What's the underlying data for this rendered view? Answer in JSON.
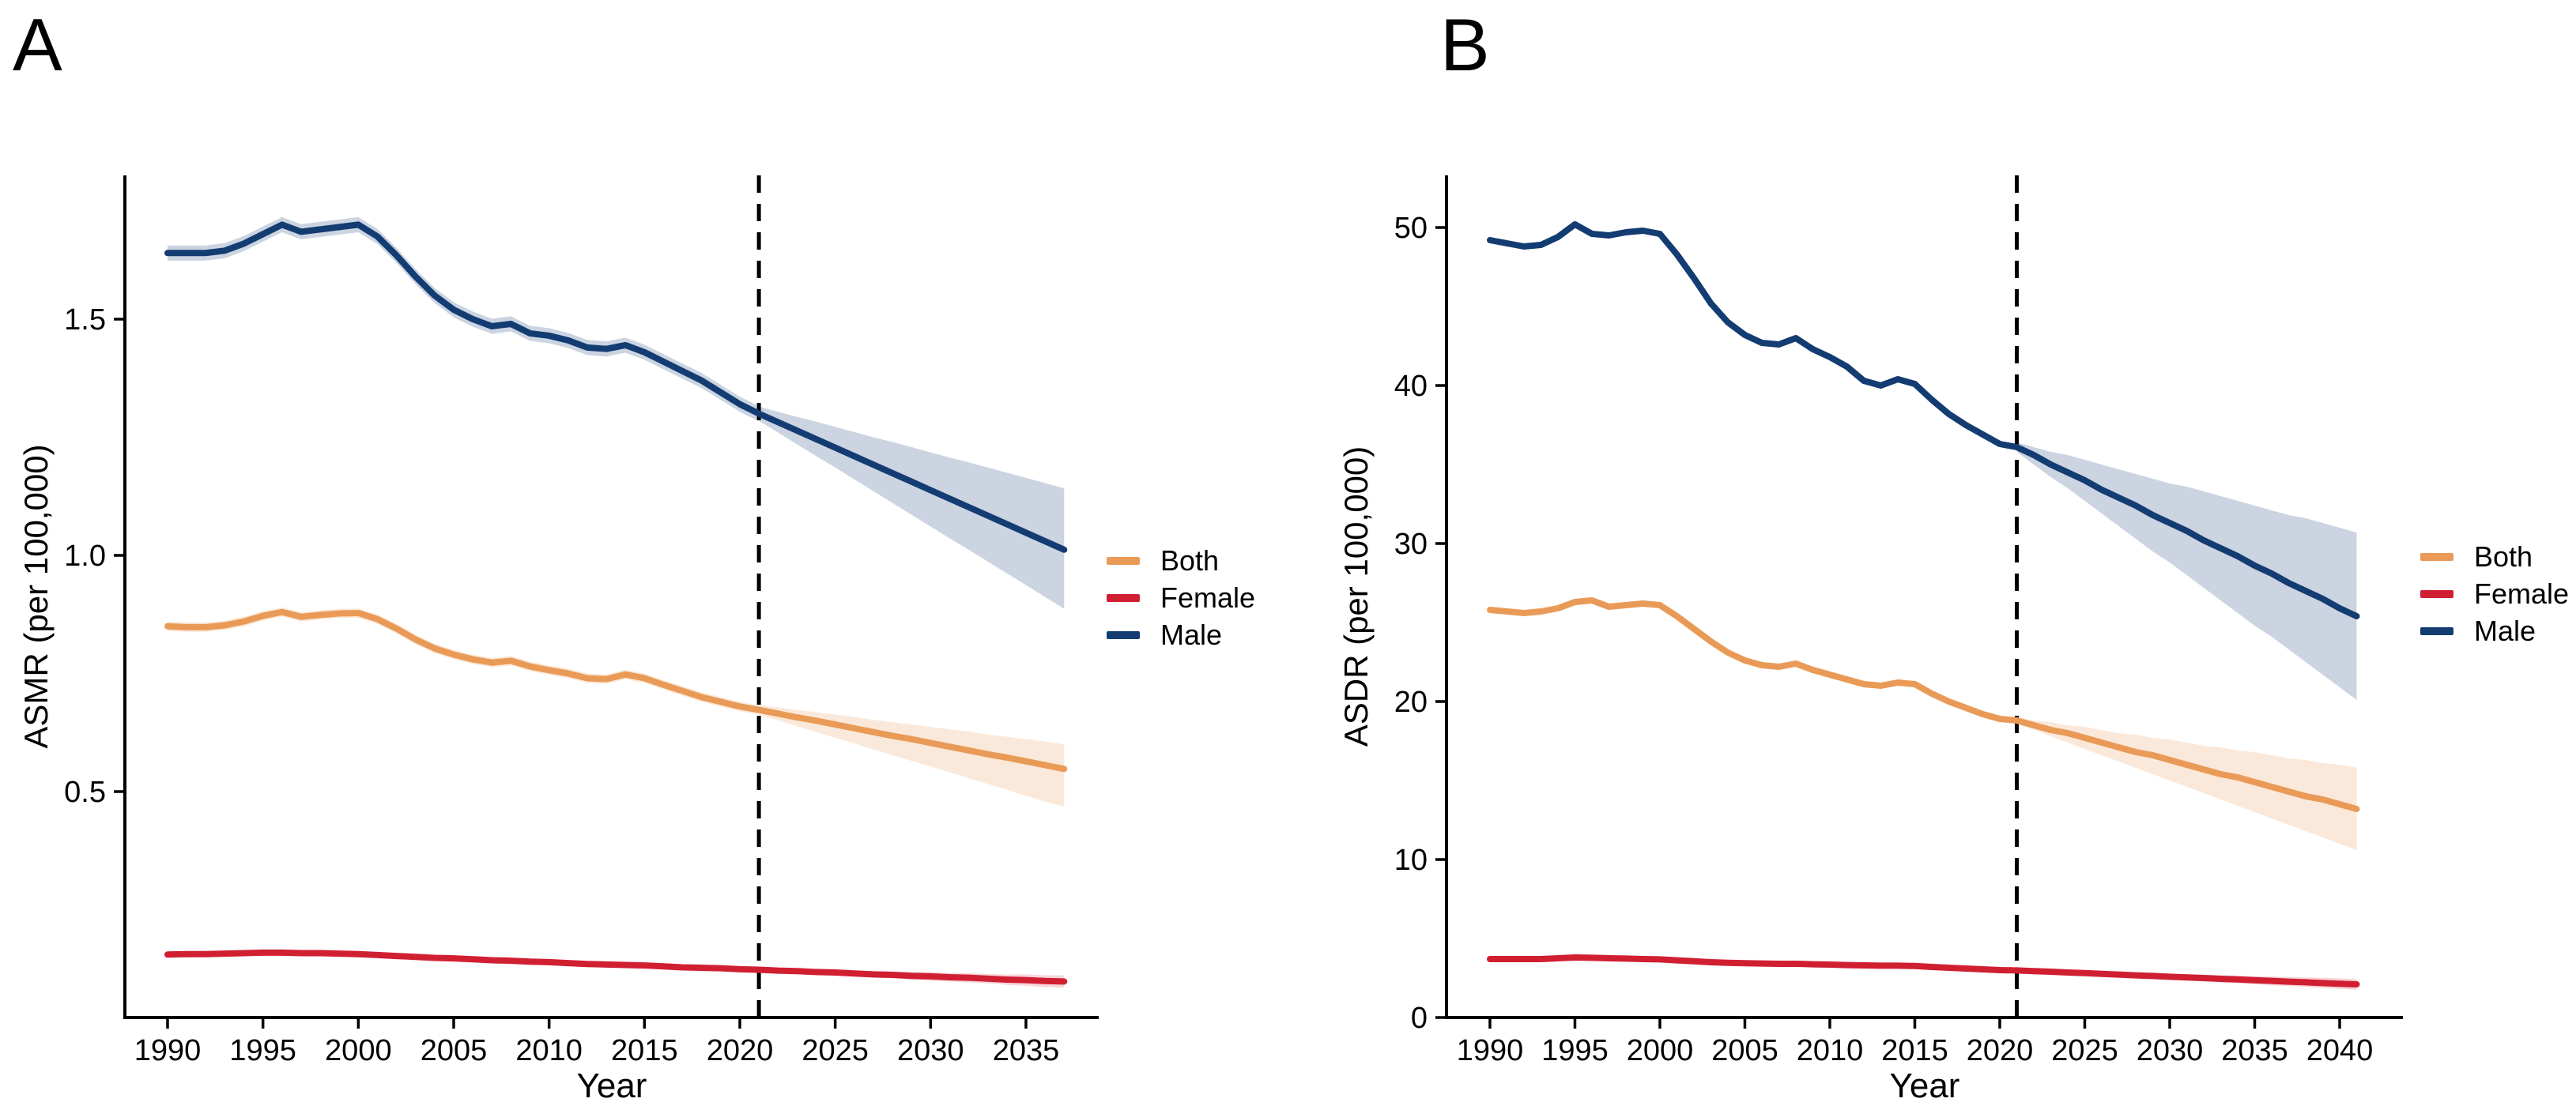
{
  "figure": {
    "background": "#ffffff",
    "axis_color": "#000000",
    "dashed_line_color": "#000000"
  },
  "chart_data": [
    {
      "type": "line",
      "title": "A",
      "xlabel": "Year",
      "ylabel": "ASMR (per 100,000)",
      "xlim": [
        1988,
        2039
      ],
      "ylim": [
        0,
        1.8
      ],
      "grid": false,
      "legend_position": "right",
      "xticks": [
        1990,
        1995,
        2000,
        2005,
        2010,
        2015,
        2020,
        2025,
        2030,
        2035
      ],
      "yticks": [
        0.5,
        1.0,
        1.5
      ],
      "ytick_labels": [
        "0.5",
        "1.0",
        "1.5"
      ],
      "hist_start_year": 1990,
      "forecast_start_year": 2021,
      "vline_year": 2021,
      "series": [
        {
          "name": "Both",
          "color": "#EA9A57",
          "band_color": "rgba(234,154,87,0.22)",
          "hist_band": 0.01,
          "hist": [
            0.85,
            0.848,
            0.848,
            0.852,
            0.86,
            0.872,
            0.88,
            0.87,
            0.874,
            0.877,
            0.878,
            0.865,
            0.845,
            0.822,
            0.803,
            0.79,
            0.78,
            0.773,
            0.777,
            0.765,
            0.757,
            0.75,
            0.74,
            0.738,
            0.748,
            0.74,
            0.726,
            0.713,
            0.7,
            0.69,
            0.68,
            0.673
          ],
          "forecast": [
            0.673,
            0.665,
            0.657,
            0.65,
            0.642,
            0.634,
            0.626,
            0.618,
            0.611,
            0.603,
            0.595,
            0.587,
            0.579,
            0.572,
            0.564,
            0.556,
            0.548
          ],
          "upper": [
            0.683,
            0.678,
            0.673,
            0.668,
            0.663,
            0.658,
            0.652,
            0.647,
            0.642,
            0.637,
            0.632,
            0.627,
            0.621,
            0.616,
            0.611,
            0.606,
            0.6
          ],
          "lower": [
            0.663,
            0.651,
            0.638,
            0.626,
            0.614,
            0.602,
            0.589,
            0.577,
            0.565,
            0.553,
            0.541,
            0.528,
            0.516,
            0.504,
            0.491,
            0.479,
            0.468
          ]
        },
        {
          "name": "Female",
          "color": "#D11F32",
          "band_color": "rgba(209,31,50,0.18)",
          "hist_band": 0.004,
          "hist": [
            0.155,
            0.156,
            0.156,
            0.157,
            0.158,
            0.159,
            0.159,
            0.158,
            0.158,
            0.157,
            0.156,
            0.154,
            0.152,
            0.15,
            0.148,
            0.147,
            0.145,
            0.143,
            0.142,
            0.14,
            0.139,
            0.137,
            0.135,
            0.134,
            0.133,
            0.132,
            0.13,
            0.128,
            0.127,
            0.126,
            0.124,
            0.123
          ],
          "forecast": [
            0.123,
            0.121,
            0.12,
            0.118,
            0.117,
            0.115,
            0.113,
            0.112,
            0.11,
            0.109,
            0.107,
            0.106,
            0.104,
            0.102,
            0.101,
            0.099,
            0.098
          ],
          "upper": [
            0.126,
            0.125,
            0.124,
            0.123,
            0.122,
            0.121,
            0.12,
            0.119,
            0.118,
            0.118,
            0.116,
            0.116,
            0.114,
            0.113,
            0.113,
            0.111,
            0.111
          ],
          "lower": [
            0.12,
            0.117,
            0.116,
            0.113,
            0.112,
            0.109,
            0.106,
            0.105,
            0.102,
            0.1,
            0.098,
            0.096,
            0.094,
            0.091,
            0.089,
            0.086,
            0.085
          ]
        },
        {
          "name": "Male",
          "color": "#133C72",
          "band_color": "rgba(19,60,114,0.22)",
          "hist_band": 0.016,
          "hist": [
            1.64,
            1.64,
            1.64,
            1.645,
            1.66,
            1.68,
            1.7,
            1.685,
            1.69,
            1.695,
            1.7,
            1.675,
            1.635,
            1.59,
            1.55,
            1.52,
            1.5,
            1.485,
            1.49,
            1.47,
            1.465,
            1.455,
            1.44,
            1.437,
            1.445,
            1.43,
            1.41,
            1.39,
            1.37,
            1.345,
            1.32,
            1.3
          ],
          "forecast": [
            1.3,
            1.282,
            1.264,
            1.246,
            1.228,
            1.21,
            1.192,
            1.174,
            1.156,
            1.138,
            1.12,
            1.102,
            1.084,
            1.066,
            1.048,
            1.03,
            1.012
          ],
          "upper": [
            1.315,
            1.304,
            1.293,
            1.283,
            1.272,
            1.261,
            1.25,
            1.24,
            1.229,
            1.218,
            1.207,
            1.197,
            1.186,
            1.175,
            1.164,
            1.153,
            1.142
          ],
          "lower": [
            1.285,
            1.26,
            1.235,
            1.21,
            1.186,
            1.161,
            1.136,
            1.111,
            1.086,
            1.061,
            1.036,
            1.012,
            0.987,
            0.962,
            0.937,
            0.912,
            0.887
          ]
        }
      ],
      "legend": [
        "Both",
        "Female",
        "Male"
      ]
    },
    {
      "type": "line",
      "title": "B",
      "xlabel": "Year",
      "ylabel": "ASDR (per 100,000)",
      "xlim": [
        1988,
        2043
      ],
      "ylim": [
        0,
        53
      ],
      "grid": false,
      "legend_position": "right",
      "xticks": [
        1990,
        1995,
        2000,
        2005,
        2010,
        2015,
        2020,
        2025,
        2030,
        2035,
        2040
      ],
      "yticks": [
        0,
        10,
        20,
        30,
        40,
        50
      ],
      "ytick_labels": [
        "0",
        "10",
        "20",
        "30",
        "40",
        "50"
      ],
      "hist_start_year": 1990,
      "forecast_start_year": 2021,
      "vline_year": 2021,
      "series": [
        {
          "name": "Both",
          "color": "#EA9A57",
          "band_color": "rgba(234,154,87,0.22)",
          "hist_band": 0,
          "hist": [
            25.8,
            25.7,
            25.6,
            25.7,
            25.9,
            26.3,
            26.4,
            26.0,
            26.1,
            26.2,
            26.1,
            25.4,
            24.6,
            23.8,
            23.1,
            22.6,
            22.3,
            22.2,
            22.4,
            22.0,
            21.7,
            21.4,
            21.1,
            21.0,
            21.2,
            21.1,
            20.5,
            20.0,
            19.6,
            19.2,
            18.9,
            18.8
          ],
          "forecast": [
            18.8,
            18.5,
            18.2,
            18.0,
            17.7,
            17.4,
            17.1,
            16.8,
            16.6,
            16.3,
            16.0,
            15.7,
            15.4,
            15.2,
            14.9,
            14.6,
            14.3,
            14.0,
            13.8,
            13.5,
            13.2
          ],
          "upper": [
            19.0,
            18.8,
            18.7,
            18.5,
            18.4,
            18.2,
            18.0,
            17.9,
            17.7,
            17.6,
            17.4,
            17.2,
            17.1,
            16.9,
            16.8,
            16.6,
            16.4,
            16.3,
            16.1,
            16.0,
            15.8
          ],
          "lower": [
            18.6,
            18.2,
            17.8,
            17.4,
            17.0,
            16.6,
            16.2,
            15.8,
            15.4,
            15.0,
            14.6,
            14.2,
            13.8,
            13.4,
            13.0,
            12.6,
            12.2,
            11.8,
            11.4,
            11.0,
            10.6
          ]
        },
        {
          "name": "Female",
          "color": "#D11F32",
          "band_color": "rgba(209,31,50,0.18)",
          "hist_band": 0,
          "hist": [
            3.7,
            3.7,
            3.7,
            3.7,
            3.75,
            3.8,
            3.78,
            3.75,
            3.73,
            3.7,
            3.68,
            3.62,
            3.56,
            3.5,
            3.46,
            3.44,
            3.42,
            3.4,
            3.4,
            3.37,
            3.35,
            3.32,
            3.3,
            3.28,
            3.28,
            3.26,
            3.2,
            3.15,
            3.1,
            3.05,
            3.0,
            2.98
          ],
          "forecast": [
            2.98,
            2.94,
            2.9,
            2.85,
            2.81,
            2.76,
            2.72,
            2.67,
            2.63,
            2.58,
            2.54,
            2.5,
            2.45,
            2.41,
            2.36,
            2.32,
            2.27,
            2.23,
            2.18,
            2.14,
            2.1
          ],
          "upper": [
            3.03,
            3.0,
            2.97,
            2.94,
            2.91,
            2.88,
            2.86,
            2.83,
            2.8,
            2.77,
            2.74,
            2.71,
            2.68,
            2.65,
            2.62,
            2.6,
            2.57,
            2.54,
            2.51,
            2.48,
            2.45
          ],
          "lower": [
            2.93,
            2.87,
            2.81,
            2.75,
            2.69,
            2.64,
            2.58,
            2.52,
            2.46,
            2.4,
            2.34,
            2.28,
            2.22,
            2.16,
            2.1,
            2.05,
            1.99,
            1.93,
            1.87,
            1.81,
            1.75
          ]
        },
        {
          "name": "Male",
          "color": "#133C72",
          "band_color": "rgba(19,60,114,0.22)",
          "hist_band": 0,
          "hist": [
            49.2,
            49.0,
            48.8,
            48.9,
            49.4,
            50.2,
            49.6,
            49.5,
            49.7,
            49.8,
            49.6,
            48.3,
            46.8,
            45.2,
            44.0,
            43.2,
            42.7,
            42.6,
            43.0,
            42.3,
            41.8,
            41.2,
            40.3,
            40.0,
            40.4,
            40.1,
            39.1,
            38.2,
            37.5,
            36.9,
            36.3,
            36.1
          ],
          "forecast": [
            36.1,
            35.6,
            35.0,
            34.5,
            34.0,
            33.4,
            32.9,
            32.4,
            31.8,
            31.3,
            30.8,
            30.2,
            29.7,
            29.2,
            28.6,
            28.1,
            27.5,
            27.0,
            26.5,
            25.9,
            25.4
          ],
          "upper": [
            36.4,
            36.1,
            35.8,
            35.6,
            35.3,
            35.0,
            34.7,
            34.4,
            34.1,
            33.8,
            33.6,
            33.3,
            33.0,
            32.7,
            32.4,
            32.1,
            31.8,
            31.6,
            31.3,
            31.0,
            30.7
          ],
          "lower": [
            35.8,
            35.0,
            34.2,
            33.5,
            32.7,
            31.9,
            31.1,
            30.3,
            29.5,
            28.8,
            28.0,
            27.2,
            26.4,
            25.6,
            24.8,
            24.1,
            23.3,
            22.5,
            21.7,
            20.9,
            20.1
          ]
        }
      ],
      "legend": [
        "Both",
        "Female",
        "Male"
      ]
    }
  ]
}
